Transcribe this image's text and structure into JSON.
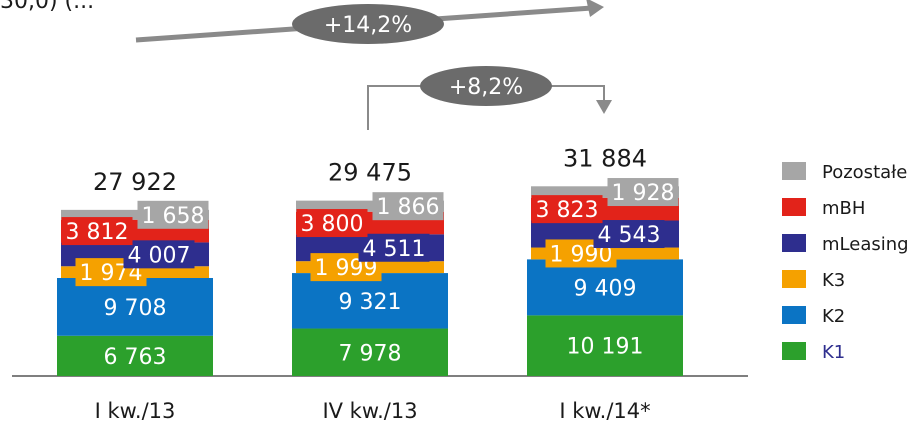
{
  "chart_data": {
    "type": "bar",
    "stacked": true,
    "categories": [
      "I kw./13",
      "IV kw./13",
      "I kw./14*"
    ],
    "series": [
      {
        "name": "K1",
        "color": "#2ca02c",
        "values": [
          6763,
          7978,
          10191
        ],
        "labels": [
          "6 763",
          "7 978",
          "10 191"
        ]
      },
      {
        "name": "K2",
        "color": "#0b74c4",
        "values": [
          9708,
          9321,
          9409
        ],
        "labels": [
          "9 708",
          "9 321",
          "9 409"
        ]
      },
      {
        "name": "K3",
        "color": "#f5a100",
        "values": [
          1974,
          1999,
          1990
        ],
        "labels": [
          "1 974",
          "1 999",
          "1 990"
        ]
      },
      {
        "name": "mLeasing",
        "color": "#2e2e8e",
        "values": [
          4007,
          4511,
          4543
        ],
        "labels": [
          "4 007",
          "4 511",
          "4 543"
        ]
      },
      {
        "name": "mBH",
        "color": "#e2231a",
        "values": [
          3812,
          3800,
          3823
        ],
        "labels": [
          "3 812",
          "3 800",
          "3 823"
        ]
      },
      {
        "name": "Pozostałe",
        "color": "#a6a6a6",
        "values": [
          1658,
          1866,
          1928
        ],
        "labels": [
          "1 658",
          "1 866",
          "1 928"
        ]
      }
    ],
    "totals": [
      "27 922",
      "29 475",
      "31 884"
    ],
    "legend_order": [
      "Pozostałe",
      "mBH",
      "mLeasing",
      "K3",
      "K2",
      "K1"
    ],
    "legend_position": "right",
    "annotations": [
      {
        "text": "+14,2%",
        "from": "I kw./13",
        "to": "I kw./14*"
      },
      {
        "text": "+8,2%",
        "from": "IV kw./13",
        "to": "I kw./14*"
      }
    ],
    "truncated_title": "30,0) (..."
  }
}
